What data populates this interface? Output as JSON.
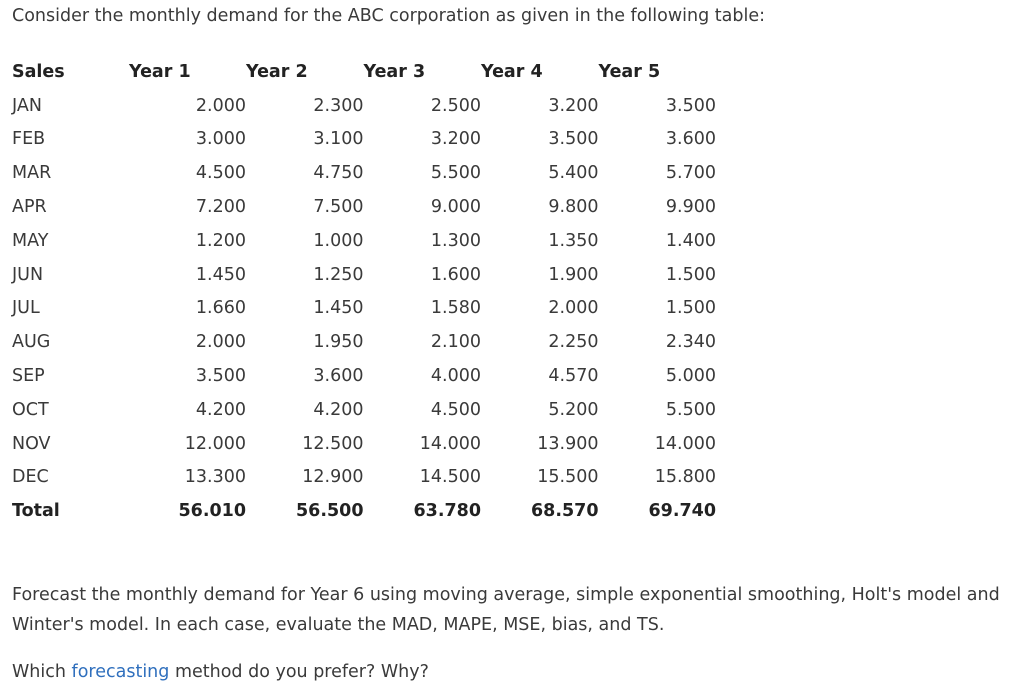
{
  "intro": "Consider the monthly demand for the ABC corporation as given in the following table:",
  "table": {
    "headers": [
      "Sales",
      "Year 1",
      "Year 2",
      "Year 3",
      "Year 4",
      "Year 5"
    ],
    "rows": [
      [
        "JAN",
        "2.000",
        "2.300",
        "2.500",
        "3.200",
        "3.500"
      ],
      [
        "FEB",
        "3.000",
        "3.100",
        "3.200",
        "3.500",
        "3.600"
      ],
      [
        "MAR",
        "4.500",
        "4.750",
        "5.500",
        "5.400",
        "5.700"
      ],
      [
        "APR",
        "7.200",
        "7.500",
        "9.000",
        "9.800",
        "9.900"
      ],
      [
        "MAY",
        "1.200",
        "1.000",
        "1.300",
        "1.350",
        "1.400"
      ],
      [
        "JUN",
        "1.450",
        "1.250",
        "1.600",
        "1.900",
        "1.500"
      ],
      [
        "JUL",
        "1.660",
        "1.450",
        "1.580",
        "2.000",
        "1.500"
      ],
      [
        "AUG",
        "2.000",
        "1.950",
        "2.100",
        "2.250",
        "2.340"
      ],
      [
        "SEP",
        "3.500",
        "3.600",
        "4.000",
        "4.570",
        "5.000"
      ],
      [
        "OCT",
        "4.200",
        "4.200",
        "4.500",
        "5.200",
        "5.500"
      ],
      [
        "NOV",
        "12.000",
        "12.500",
        "14.000",
        "13.900",
        "14.000"
      ],
      [
        "DEC",
        "13.300",
        "12.900",
        "14.500",
        "15.500",
        "15.800"
      ]
    ],
    "total": [
      "Total",
      "56.010",
      "56.500",
      "63.780",
      "68.570",
      "69.740"
    ]
  },
  "paragraph": "Forecast the monthly demand for Year 6 using moving average, simple exponential smoothing, Holt's model and Winter's model. In each case, evaluate the  MAD, MAPE, MSE, bias, and TS.",
  "question": {
    "before": "Which ",
    "link": "forecasting",
    "after": " method do you prefer? Why?"
  },
  "colors": {
    "text": "#3a3a3a",
    "link": "#2f6fbd"
  }
}
